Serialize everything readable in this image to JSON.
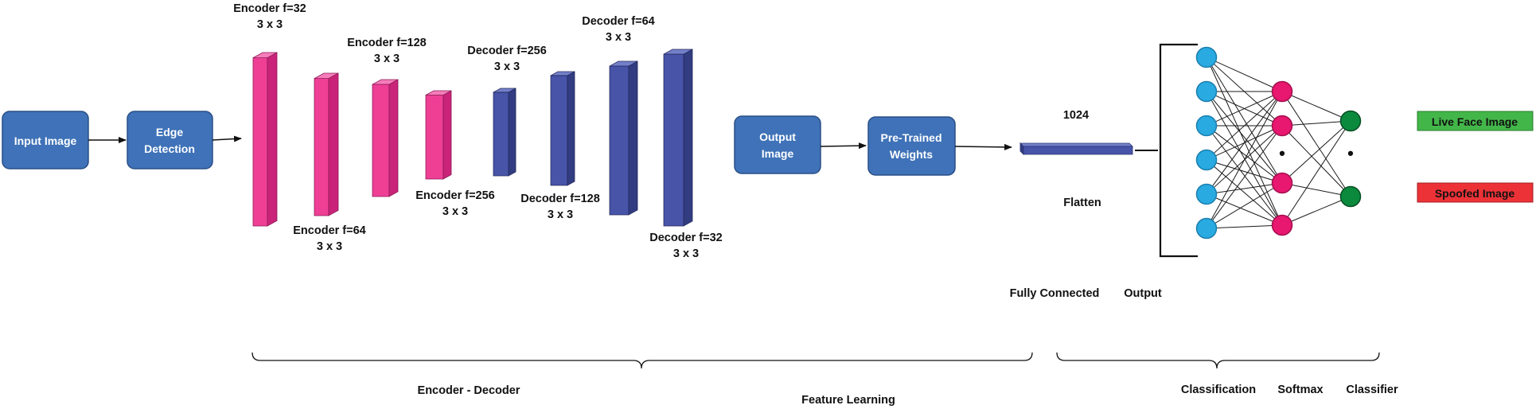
{
  "colors": {
    "box_fill": "#3f72b8",
    "box_stroke": "#2a4f86",
    "encoder_front": "#ee3f95",
    "encoder_side": "#c92479",
    "encoder_top": "#f57dba",
    "decoder_front": "#4754a8",
    "decoder_side": "#323c80",
    "decoder_top": "#7480c9",
    "input_node": "#29aae1",
    "hidden_node": "#e8176f",
    "output_node": "#0b8a3e",
    "live_fill": "#43b649",
    "spoof_fill": "#ed3237"
  },
  "boxes": {
    "input_image": "Input Image",
    "edge_detection": [
      "Edge",
      "Detection"
    ],
    "output_image": [
      "Output",
      "Image"
    ],
    "pretrained": [
      "Pre-Trained",
      "Weights"
    ]
  },
  "layers": [
    {
      "kind": "encoder",
      "name": "Encoder f=32",
      "kernel": "3 x 3"
    },
    {
      "kind": "encoder",
      "name": "Encoder f=64",
      "kernel": "3 x 3"
    },
    {
      "kind": "encoder",
      "name": "Encoder f=128",
      "kernel": "3 x 3"
    },
    {
      "kind": "encoder",
      "name": "Encoder f=256",
      "kernel": "3 x 3"
    },
    {
      "kind": "decoder",
      "name": "Decoder f=256",
      "kernel": "3 x 3"
    },
    {
      "kind": "decoder",
      "name": "Decoder f=128",
      "kernel": "3 x 3"
    },
    {
      "kind": "decoder",
      "name": "Decoder f=64",
      "kernel": "3 x 3"
    },
    {
      "kind": "decoder",
      "name": "Decoder f=32",
      "kernel": "3 x 3"
    }
  ],
  "flatten": {
    "size": "1024",
    "label": "Flatten"
  },
  "network": {
    "fully_connected": "Fully Connected",
    "output": "Output",
    "input_nodes": 6,
    "hidden_nodes": 4,
    "output_nodes": 2,
    "dot": "•"
  },
  "outputs": {
    "live": "Live Face Image",
    "spoofed": "Spoofed Image"
  },
  "brackets": {
    "encoder_decoder": "Encoder - Decoder",
    "feature_learning": "Feature Learning",
    "classification": "Classification",
    "softmax": "Softmax",
    "classifier": "Classifier"
  }
}
